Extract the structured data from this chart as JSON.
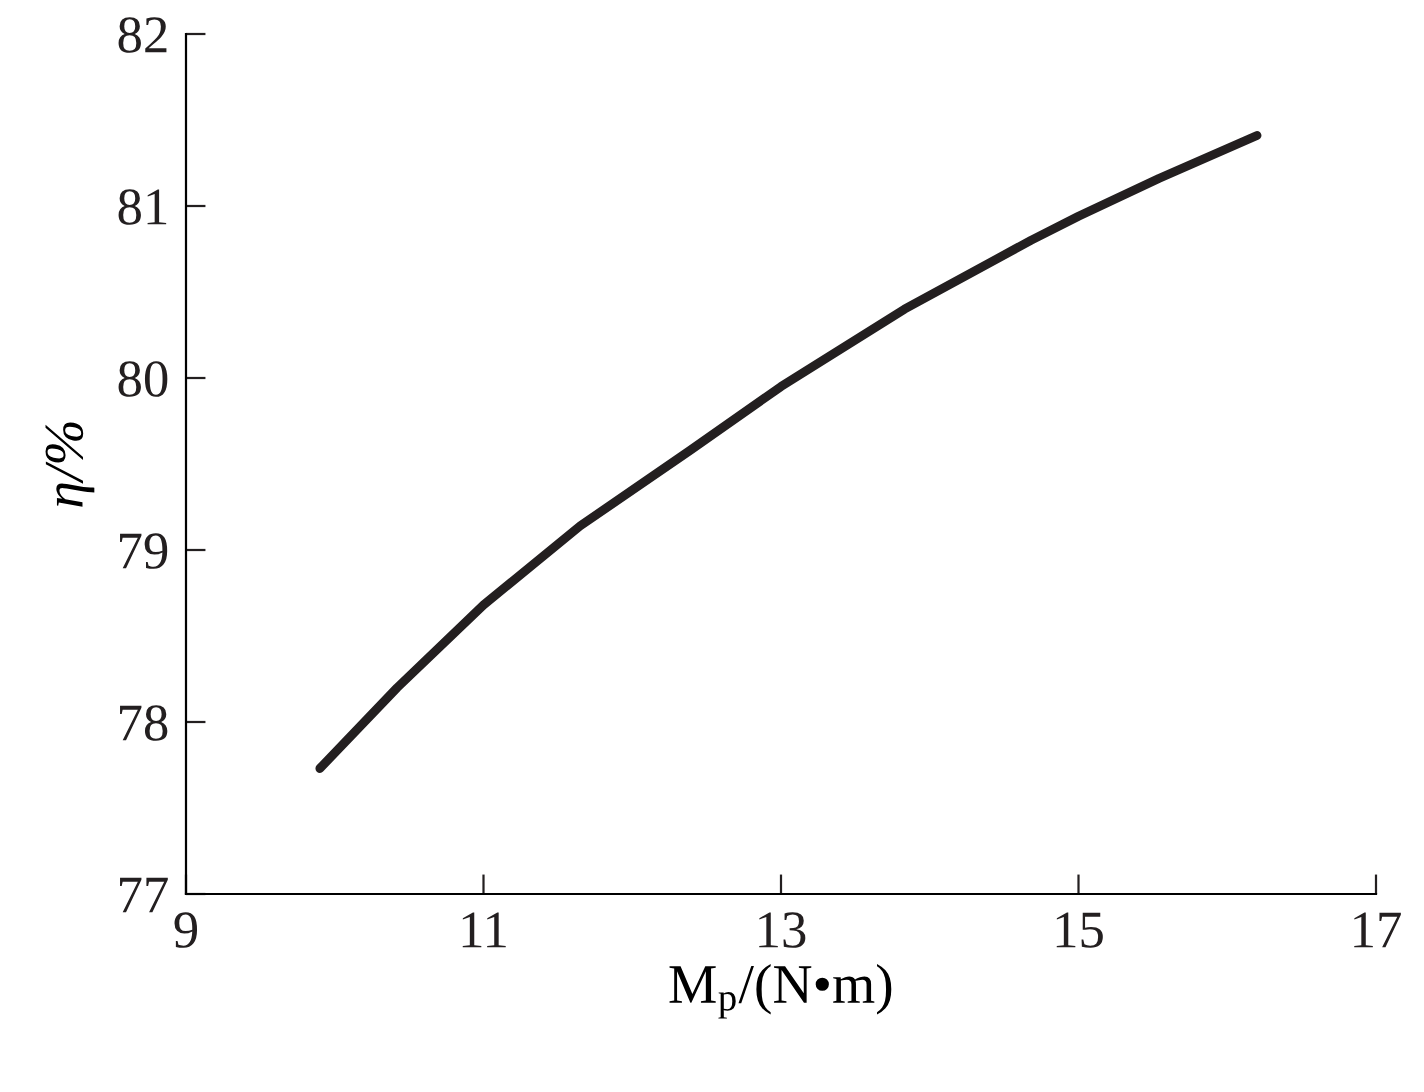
{
  "chart_data": {
    "type": "line",
    "xlabel": "M$_{p}$/(N•m)",
    "ylabel": "η/%",
    "series": [
      {
        "color": "#231f20",
        "x": [
          9.9,
          10.42,
          11.0,
          11.65,
          12.39,
          13.0,
          13.83,
          14.68,
          15.0,
          15.54,
          16.2
        ],
        "values": [
          77.73,
          78.2,
          78.68,
          79.14,
          79.58,
          79.95,
          80.4,
          80.8,
          80.94,
          81.16,
          81.41
        ]
      }
    ],
    "xlim": [
      9,
      17
    ],
    "ylim": [
      77,
      82
    ],
    "xticks": [
      9,
      11,
      13,
      15,
      17
    ],
    "yticks": [
      77,
      78,
      79,
      80,
      81,
      82
    ],
    "grid": false,
    "legend": false,
    "marker": "none",
    "line_style": "solid"
  }
}
